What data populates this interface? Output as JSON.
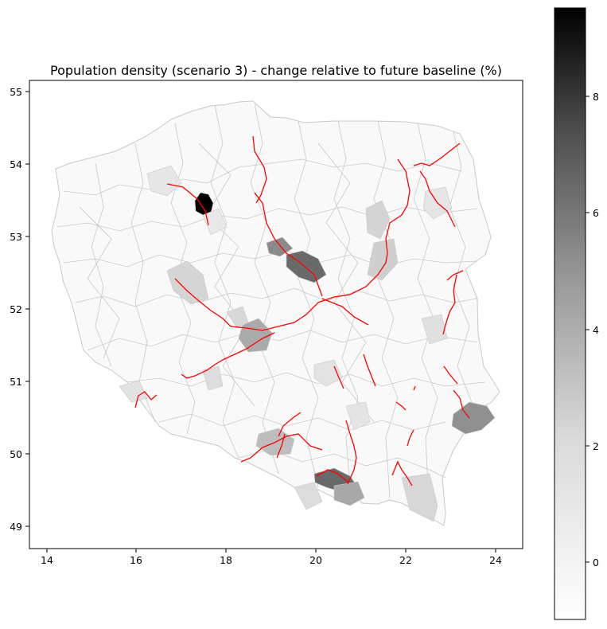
{
  "map": {
    "title": "Population density (scenario 3) - change relative to future baseline (%)",
    "x_ticks": [
      "14",
      "16",
      "18",
      "20",
      "22",
      "24"
    ],
    "y_ticks": [
      "55",
      "54",
      "53",
      "52",
      "51",
      "50",
      "49"
    ],
    "x_range": [
      13.7,
      24.7
    ],
    "y_range": [
      48.7,
      55.2
    ],
    "grid": false
  },
  "colorbar": {
    "range": [
      -1,
      9.5
    ],
    "ticks": [
      "8",
      "6",
      "4",
      "2",
      "0"
    ],
    "tick_values": [
      8,
      6,
      4,
      2,
      0
    ],
    "colormap": "Greys"
  },
  "colors": {
    "region_border": "#c8c8c8",
    "region_fill": "#f9f9f9",
    "roads": "#ff0000",
    "axes": "#000000"
  }
}
